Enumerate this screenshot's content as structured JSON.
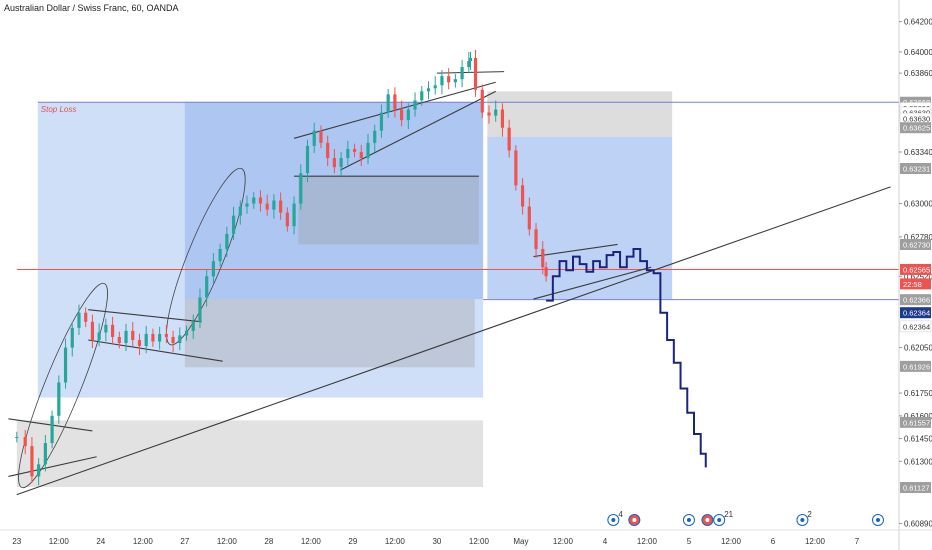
{
  "header": {
    "title": "Australian Dollar / Swiss Franc, 60, OANDA"
  },
  "labels": {
    "stop_loss": "Stop Loss"
  },
  "price_badges": [
    {
      "text": "0.63668",
      "price": 0.63668,
      "bg": "#9e9e9e",
      "fg": "#ffffff"
    },
    {
      "text": "0.63630",
      "price": 0.6363,
      "bg": "#ffffff",
      "fg": "#333333"
    },
    {
      "text": "0.63630",
      "price": 0.636,
      "bg": "#ffffff",
      "fg": "#333333"
    },
    {
      "text": "0.63630",
      "price": 0.6356,
      "bg": "#ffffff",
      "fg": "#333333"
    },
    {
      "text": "0.63625",
      "price": 0.635,
      "bg": "#9e9e9e",
      "fg": "#ffffff"
    },
    {
      "text": "0.63231",
      "price": 0.63231,
      "bg": "#9e9e9e",
      "fg": "#ffffff"
    },
    {
      "text": "0.62730",
      "price": 0.6273,
      "bg": "#9e9e9e",
      "fg": "#ffffff"
    },
    {
      "text": "0.62565",
      "price": 0.62565,
      "bg": "#ef5350",
      "fg": "#ffffff"
    },
    {
      "text": "22:58",
      "price": 0.6247,
      "bg": "#ef5350",
      "fg": "#ffffff"
    },
    {
      "text": "0.62366",
      "price": 0.62366,
      "bg": "#9e9e9e",
      "fg": "#ffffff"
    },
    {
      "text": "0.62364",
      "price": 0.6228,
      "bg": "#1e3a8a",
      "fg": "#ffffff"
    },
    {
      "text": "0.62364",
      "price": 0.6219,
      "bg": "#ffffff",
      "fg": "#333333"
    },
    {
      "text": "0.61926",
      "price": 0.61926,
      "bg": "#9e9e9e",
      "fg": "#ffffff"
    },
    {
      "text": "0.61557",
      "price": 0.61557,
      "bg": "#9e9e9e",
      "fg": "#ffffff"
    },
    {
      "text": "0.61127",
      "price": 0.61127,
      "bg": "#9e9e9e",
      "fg": "#ffffff"
    }
  ],
  "chart_data": {
    "type": "candlestick",
    "title": "Australian Dollar / Swiss Franc, 60, OANDA",
    "y_ticks": [
      "0.64200",
      "0.64000",
      "0.63860",
      "0.63340",
      "0.63000",
      "0.62780",
      "0.62520",
      "0.62050",
      "0.61750",
      "0.61600",
      "0.61450",
      "0.61300",
      "0.60890"
    ],
    "x_ticks": [
      {
        "label": "23",
        "t": 0
      },
      {
        "label": "12:00",
        "t": 0.5
      },
      {
        "label": "24",
        "t": 1
      },
      {
        "label": "12:00",
        "t": 1.5
      },
      {
        "label": "27",
        "t": 2
      },
      {
        "label": "12:00",
        "t": 2.5
      },
      {
        "label": "28",
        "t": 3
      },
      {
        "label": "12:00",
        "t": 3.5
      },
      {
        "label": "29",
        "t": 4
      },
      {
        "label": "12:00",
        "t": 4.5
      },
      {
        "label": "30",
        "t": 5
      },
      {
        "label": "12:00",
        "t": 5.5
      },
      {
        "label": "May",
        "t": 6
      },
      {
        "label": "12:00",
        "t": 6.5
      },
      {
        "label": "4",
        "t": 7
      },
      {
        "label": "12:00",
        "t": 7.5
      },
      {
        "label": "5",
        "t": 8
      },
      {
        "label": "12:00",
        "t": 8.5
      },
      {
        "label": "6",
        "t": 9
      },
      {
        "label": "12:00",
        "t": 9.5
      },
      {
        "label": "7",
        "t": 10
      }
    ],
    "ylim": [
      0.6086,
      0.6425
    ],
    "price_close_path": [
      [
        0.0,
        0.6146
      ],
      [
        0.1,
        0.614
      ],
      [
        0.18,
        0.612
      ],
      [
        0.26,
        0.6128
      ],
      [
        0.34,
        0.6142
      ],
      [
        0.42,
        0.616
      ],
      [
        0.5,
        0.6182
      ],
      [
        0.58,
        0.6205
      ],
      [
        0.66,
        0.6218
      ],
      [
        0.74,
        0.6228
      ],
      [
        0.82,
        0.6222
      ],
      [
        0.9,
        0.621
      ],
      [
        0.98,
        0.6215
      ],
      [
        1.06,
        0.622
      ],
      [
        1.14,
        0.6212
      ],
      [
        1.22,
        0.6208
      ],
      [
        1.3,
        0.6216
      ],
      [
        1.38,
        0.621
      ],
      [
        1.46,
        0.6206
      ],
      [
        1.54,
        0.6214
      ],
      [
        1.62,
        0.6209
      ],
      [
        1.7,
        0.6214
      ],
      [
        1.78,
        0.6212
      ],
      [
        1.86,
        0.6208
      ],
      [
        1.94,
        0.6213
      ],
      [
        2.02,
        0.6216
      ],
      [
        2.1,
        0.6222
      ],
      [
        2.18,
        0.6238
      ],
      [
        2.26,
        0.6252
      ],
      [
        2.34,
        0.6262
      ],
      [
        2.42,
        0.627
      ],
      [
        2.5,
        0.628
      ],
      [
        2.58,
        0.6292
      ],
      [
        2.66,
        0.6298
      ],
      [
        2.74,
        0.63
      ],
      [
        2.82,
        0.6304
      ],
      [
        2.9,
        0.63
      ],
      [
        2.98,
        0.6296
      ],
      [
        3.06,
        0.6302
      ],
      [
        3.14,
        0.6294
      ],
      [
        3.22,
        0.6285
      ],
      [
        3.3,
        0.63
      ],
      [
        3.38,
        0.632
      ],
      [
        3.46,
        0.6338
      ],
      [
        3.54,
        0.6348
      ],
      [
        3.62,
        0.634
      ],
      [
        3.7,
        0.633
      ],
      [
        3.78,
        0.6324
      ],
      [
        3.86,
        0.633
      ],
      [
        3.94,
        0.6336
      ],
      [
        4.02,
        0.6334
      ],
      [
        4.1,
        0.633
      ],
      [
        4.18,
        0.634
      ],
      [
        4.26,
        0.6348
      ],
      [
        4.34,
        0.636
      ],
      [
        4.42,
        0.6372
      ],
      [
        4.5,
        0.6362
      ],
      [
        4.58,
        0.6355
      ],
      [
        4.66,
        0.6362
      ],
      [
        4.74,
        0.6368
      ],
      [
        4.82,
        0.6374
      ],
      [
        4.9,
        0.6376
      ],
      [
        4.98,
        0.6378
      ],
      [
        5.06,
        0.6384
      ],
      [
        5.14,
        0.638
      ],
      [
        5.22,
        0.6382
      ],
      [
        5.3,
        0.639
      ],
      [
        5.38,
        0.6394
      ],
      [
        5.4,
        0.6396
      ],
      [
        5.46,
        0.6375
      ],
      [
        5.54,
        0.636
      ],
      [
        5.62,
        0.6358
      ],
      [
        5.7,
        0.6362
      ],
      [
        5.78,
        0.635
      ],
      [
        5.86,
        0.6335
      ],
      [
        5.94,
        0.6312
      ],
      [
        6.02,
        0.6298
      ],
      [
        6.1,
        0.6283
      ],
      [
        6.18,
        0.627
      ],
      [
        6.26,
        0.6258
      ],
      [
        6.3,
        0.6252
      ]
    ],
    "projection_path": [
      [
        6.3,
        0.6236
      ],
      [
        6.38,
        0.6252
      ],
      [
        6.46,
        0.6262
      ],
      [
        6.54,
        0.6256
      ],
      [
        6.62,
        0.6265
      ],
      [
        6.7,
        0.626
      ],
      [
        6.78,
        0.6255
      ],
      [
        6.86,
        0.6262
      ],
      [
        6.94,
        0.6258
      ],
      [
        7.02,
        0.6266
      ],
      [
        7.1,
        0.6268
      ],
      [
        7.18,
        0.6258
      ],
      [
        7.26,
        0.6265
      ],
      [
        7.34,
        0.627
      ],
      [
        7.42,
        0.6262
      ],
      [
        7.5,
        0.6256
      ],
      [
        7.58,
        0.6254
      ],
      [
        7.66,
        0.6228
      ],
      [
        7.74,
        0.621
      ],
      [
        7.82,
        0.6195
      ],
      [
        7.9,
        0.6178
      ],
      [
        7.98,
        0.6162
      ],
      [
        8.06,
        0.6148
      ],
      [
        8.14,
        0.6135
      ],
      [
        8.2,
        0.6126
      ]
    ],
    "zones": [
      {
        "name": "entry-zone",
        "t0": 0.25,
        "t1": 5.55,
        "p0": 0.6172,
        "p1": 0.6367,
        "color": "#6e9be8",
        "opacity": 0.32
      },
      {
        "name": "entry-zone-2",
        "t0": 2.0,
        "t1": 5.55,
        "p0": 0.6237,
        "p1": 0.6367,
        "color": "#6e9be8",
        "opacity": 0.35
      },
      {
        "name": "gray-block-a",
        "t0": 2.0,
        "t1": 5.45,
        "p0": 0.6192,
        "p1": 0.6237,
        "color": "#9e9e9e",
        "opacity": 0.35
      },
      {
        "name": "gray-block-b",
        "t0": 3.35,
        "t1": 5.5,
        "p0": 0.6273,
        "p1": 0.6318,
        "color": "#9e9e9e",
        "opacity": 0.35
      },
      {
        "name": "gray-block-c",
        "t0": 0.0,
        "t1": 5.55,
        "p0": 0.6113,
        "p1": 0.6157,
        "color": "#9e9e9e",
        "opacity": 0.3
      },
      {
        "name": "tp-zone",
        "t0": 5.6,
        "t1": 7.8,
        "p0": 0.6237,
        "p1": 0.6344,
        "color": "#6e9be8",
        "opacity": 0.45
      },
      {
        "name": "sl-zone",
        "t0": 5.6,
        "t1": 7.8,
        "p0": 0.6344,
        "p1": 0.6374,
        "color": "#9e9e9e",
        "opacity": 0.35
      }
    ],
    "hlines": [
      {
        "name": "stop-loss-line",
        "price": 0.63668,
        "t0": 0.25,
        "t1": 10.5,
        "color": "#7b7bd6"
      },
      {
        "name": "entry-line",
        "price": 0.62366,
        "t0": 5.55,
        "t1": 10.5,
        "color": "#7b7bd6"
      },
      {
        "name": "current-price-line",
        "price": 0.62565,
        "t0": 0.0,
        "t1": 10.5,
        "color": "#ef5350"
      }
    ],
    "trendlines": [
      {
        "name": "long-trendline",
        "a": [
          0.0,
          0.6108
        ],
        "b": [
          10.4,
          0.6311
        ]
      },
      {
        "name": "wedge-top",
        "a": [
          6.15,
          0.6265
        ],
        "b": [
          7.15,
          0.6273
        ]
      },
      {
        "name": "wedge-bottom",
        "a": [
          6.15,
          0.6237
        ],
        "b": [
          7.55,
          0.6258
        ]
      },
      {
        "name": "flag-1-top",
        "a": [
          0.85,
          0.623
        ],
        "b": [
          2.2,
          0.6222
        ]
      },
      {
        "name": "flag-1-bottom",
        "a": [
          0.85,
          0.621
        ],
        "b": [
          2.45,
          0.6196
        ]
      },
      {
        "name": "flag-2-top",
        "a": [
          3.3,
          0.6343
        ],
        "b": [
          5.7,
          0.638
        ]
      },
      {
        "name": "flag-2-bottom",
        "a": [
          3.85,
          0.6322
        ],
        "b": [
          5.7,
          0.6374
        ]
      },
      {
        "name": "low-line",
        "a": [
          -0.1,
          0.6158
        ],
        "b": [
          0.9,
          0.615
        ]
      },
      {
        "name": "low-line-2",
        "a": [
          -0.1,
          0.612
        ],
        "b": [
          0.95,
          0.6133
        ]
      },
      {
        "name": "flag-top-30",
        "a": [
          5.0,
          0.6386
        ],
        "b": [
          5.8,
          0.6387
        ]
      },
      {
        "name": "support-28",
        "a": [
          3.3,
          0.6318
        ],
        "b": [
          5.5,
          0.6318
        ]
      }
    ],
    "event_badges": [
      {
        "t": 7.1,
        "text": "4",
        "bg": "#ffffff",
        "fg": "#333"
      },
      {
        "t": 7.35,
        "text": "",
        "bg": "#ef5350",
        "fg": "#fff"
      },
      {
        "t": 8.0,
        "text": "",
        "bg": "#ffffff",
        "fg": "#333"
      },
      {
        "t": 8.22,
        "text": "",
        "bg": "#ef5350",
        "fg": "#fff"
      },
      {
        "t": 8.36,
        "text": "21",
        "bg": "#ffffff",
        "fg": "#333"
      },
      {
        "t": 9.35,
        "text": "2",
        "bg": "#ffffff",
        "fg": "#333"
      },
      {
        "t": 10.25,
        "text": "",
        "bg": "#ffffff",
        "fg": "#333"
      }
    ]
  }
}
